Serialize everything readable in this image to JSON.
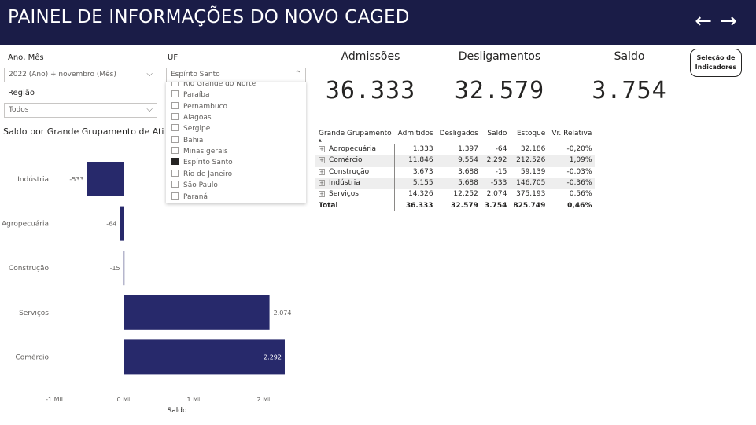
{
  "header": {
    "title": "PAINEL DE INFORMAÇÕES DO NOVO CAGED",
    "back_icon": "←",
    "forward_icon": "→"
  },
  "filters": {
    "ano_mes": {
      "label": "Ano, Mês",
      "value": "2022 (Ano) + novembro (Mês)"
    },
    "regiao": {
      "label": "Região",
      "value": "Todos"
    },
    "uf": {
      "label": "UF",
      "value": "Espírito Santo",
      "options": [
        {
          "label": "Rio Grande do Norte",
          "checked": false
        },
        {
          "label": "Paraíba",
          "checked": false
        },
        {
          "label": "Pernambuco",
          "checked": false
        },
        {
          "label": "Alagoas",
          "checked": false
        },
        {
          "label": "Sergipe",
          "checked": false
        },
        {
          "label": "Bahia",
          "checked": false
        },
        {
          "label": "Minas gerais",
          "checked": false
        },
        {
          "label": "Espírito Santo",
          "checked": true
        },
        {
          "label": "Rio de Janeiro",
          "checked": false
        },
        {
          "label": "São Paulo",
          "checked": false
        },
        {
          "label": "Paraná",
          "checked": false
        }
      ]
    }
  },
  "kpis": {
    "admissoes": {
      "label": "Admissões",
      "value": "36.333"
    },
    "desligamentos": {
      "label": "Desligamentos",
      "value": "32.579"
    },
    "saldo": {
      "label": "Saldo",
      "value": "3.754"
    }
  },
  "selection_button": {
    "line1": "Seleção de",
    "line2": "Indicadores"
  },
  "chart_data": {
    "type": "bar",
    "orientation": "horizontal",
    "title": "Saldo por Grande Grupamento de Ati",
    "categories": [
      "Indústria",
      "Agropecuária",
      "Construção",
      "Serviços",
      "Comércio"
    ],
    "values": [
      -533,
      -64,
      -15,
      2074,
      2292
    ],
    "data_labels": [
      "-533",
      "-64",
      "-15",
      "2.074",
      "2.292"
    ],
    "xlabel": "Saldo",
    "xlim": [
      -1000,
      2000
    ],
    "ticks": [
      -1000,
      0,
      1000,
      2000
    ],
    "tick_labels": [
      "-1 Mil",
      "0 Mil",
      "1 Mil",
      "2 Mil"
    ],
    "bar_color": "#27296b"
  },
  "matrix": {
    "columns": [
      "Grande Grupamento",
      "Admitidos",
      "Desligados",
      "Saldo",
      "Estoque",
      "Vr. Relativa"
    ],
    "rows": [
      [
        "Agropecuária",
        "1.333",
        "1.397",
        "-64",
        "32.186",
        "-0,20%"
      ],
      [
        "Comércio",
        "11.846",
        "9.554",
        "2.292",
        "212.526",
        "1,09%"
      ],
      [
        "Construção",
        "3.673",
        "3.688",
        "-15",
        "59.139",
        "-0,03%"
      ],
      [
        "Indústria",
        "5.155",
        "5.688",
        "-533",
        "146.705",
        "-0,36%"
      ],
      [
        "Serviços",
        "14.326",
        "12.252",
        "2.074",
        "375.193",
        "0,56%"
      ]
    ],
    "total": [
      "Total",
      "36.333",
      "32.579",
      "3.754",
      "825.749",
      "0,46%"
    ],
    "expander_symbol": "+",
    "sort_caret": "▲"
  }
}
